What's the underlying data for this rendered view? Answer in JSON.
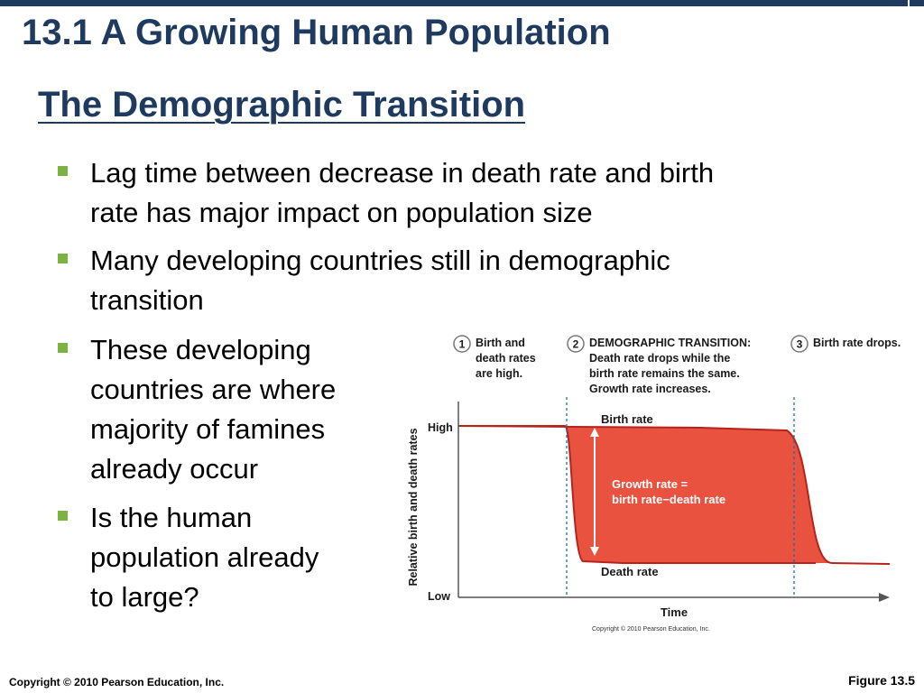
{
  "slide": {
    "title": "13.1 A Growing Human Population",
    "subtitle": "The Demographic Transition"
  },
  "bullets": [
    {
      "lines": [
        "Lag time between decrease in death rate and birth",
        "rate has major impact on population size"
      ]
    },
    {
      "lines": [
        "Many developing countries still in demographic",
        "transition"
      ]
    },
    {
      "lines": [
        "These developing",
        "countries are where",
        "majority of famines",
        "already occur"
      ]
    },
    {
      "lines": [
        "Is the human",
        "population already",
        "to large?"
      ]
    }
  ],
  "figure": {
    "stages": [
      {
        "number": "1",
        "lines": [
          "Birth and",
          "death rates",
          "are high."
        ]
      },
      {
        "number": "2",
        "lines": [
          "DEMOGRAPHIC TRANSITION:",
          "Death rate drops while the",
          "birth rate remains the same.",
          "Growth rate increases."
        ]
      },
      {
        "number": "3",
        "lines": [
          "Birth rate drops."
        ]
      }
    ],
    "y_axis_label": "Relative birth and death rates",
    "high_label": "High",
    "low_label": "Low",
    "x_axis_label": "Time",
    "birth_rate_label": "Birth rate",
    "death_rate_label": "Death rate",
    "growth_rate_lines": [
      "Growth rate =",
      "birth rate−death rate"
    ],
    "copyright": "Copyright © 2010 Pearson Education, Inc.",
    "colors": {
      "fill": "#e8523f",
      "line": "#b5241c",
      "divider": "#1b6fb5",
      "badge": "#777777"
    }
  },
  "footer": {
    "copyright": "Copyright © 2010 Pearson Education, Inc.",
    "figure_label": "Figure 13.5"
  }
}
